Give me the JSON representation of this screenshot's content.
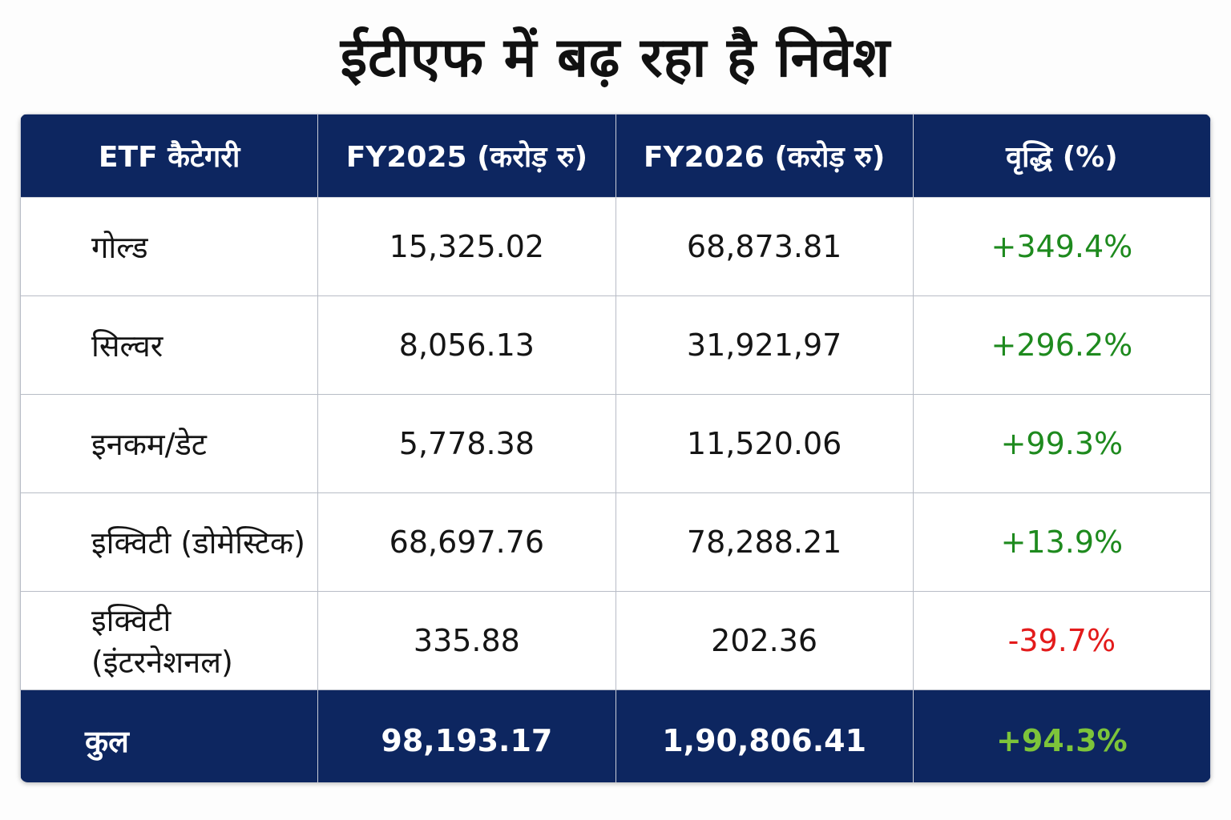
{
  "title": "ईटीएफ में बढ़ रहा है निवेश",
  "colors": {
    "header_bg": "#0d2660",
    "positive": "#1e8a1e",
    "negative": "#e31b1b",
    "total_positive": "#7dc43a"
  },
  "chart_data": {
    "type": "table",
    "columns": [
      "ETF कैटेगरी",
      "FY2025 (करोड़ रु)",
      "FY2026 (करोड़ रु)",
      "वृद्धि (%)"
    ],
    "rows": [
      {
        "category": "गोल्ड",
        "fy2025": "15,325.02",
        "fy2026": "68,873.81",
        "growth": "+349.4%"
      },
      {
        "category": "सिल्वर",
        "fy2025": "8,056.13",
        "fy2026": "31,921,97",
        "growth": "+296.2%"
      },
      {
        "category": "इनकम/डेट",
        "fy2025": "5,778.38",
        "fy2026": "11,520.06",
        "growth": "+99.3%"
      },
      {
        "category": "इक्विटी (डोमेस्टिक)",
        "fy2025": "68,697.76",
        "fy2026": "78,288.21",
        "growth": "+13.9%"
      },
      {
        "category": "इक्विटी (इंटरनेशनल)",
        "fy2025": "335.88",
        "fy2026": "202.36",
        "growth": "-39.7%"
      }
    ],
    "total": {
      "category": "कुल",
      "fy2025": "98,193.17",
      "fy2026": "1,90,806.41",
      "growth": "+94.3%"
    }
  }
}
